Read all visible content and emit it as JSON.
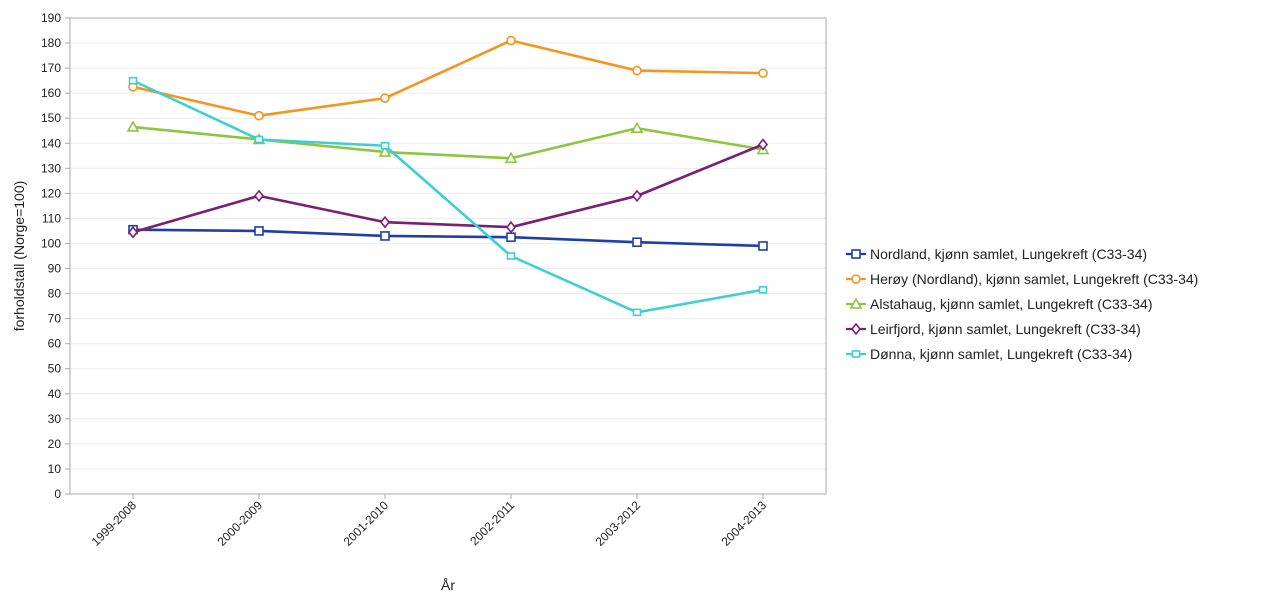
{
  "chart_data": {
    "type": "line",
    "xlabel": "År",
    "ylabel": "forholdstall (Norge=100)",
    "ylim": [
      0,
      190
    ],
    "yticks": [
      0,
      10,
      20,
      30,
      40,
      50,
      60,
      70,
      80,
      90,
      100,
      110,
      120,
      130,
      140,
      150,
      160,
      170,
      180,
      190
    ],
    "categories": [
      "1999-2008",
      "2000-2009",
      "2001-2010",
      "2002-2011",
      "2003-2012",
      "2004-2013"
    ],
    "grid": true,
    "legend_position": "right",
    "series": [
      {
        "name": "Nordland, kjønn samlet, Lungekreft (C33-34)",
        "color": "#1f3fa6",
        "marker": "square",
        "values": [
          105.5,
          105,
          103,
          102.5,
          100.5,
          99
        ]
      },
      {
        "name": "Herøy (Nordland), kjønn samlet, Lungekreft (C33-34)",
        "color": "#f7941d",
        "marker": "circle",
        "values": [
          162.5,
          151,
          158,
          181,
          169,
          168
        ]
      },
      {
        "name": "Alstahaug, kjønn samlet, Lungekreft (C33-34)",
        "color": "#8cc63f",
        "marker": "triangle",
        "values": [
          146.5,
          141.5,
          136.5,
          134,
          146,
          137.5
        ]
      },
      {
        "name": "Leirfjord, kjønn samlet, Lungekreft (C33-34)",
        "color": "#7a1f75",
        "marker": "diamond",
        "values": [
          104.5,
          119,
          108.5,
          106.5,
          119,
          139.5
        ]
      },
      {
        "name": "Dønna, kjønn samlet, Lungekreft (C33-34)",
        "color": "#3fcfd0",
        "marker": "square-small",
        "values": [
          165,
          141.5,
          139,
          95,
          72.5,
          81.5
        ]
      }
    ]
  }
}
